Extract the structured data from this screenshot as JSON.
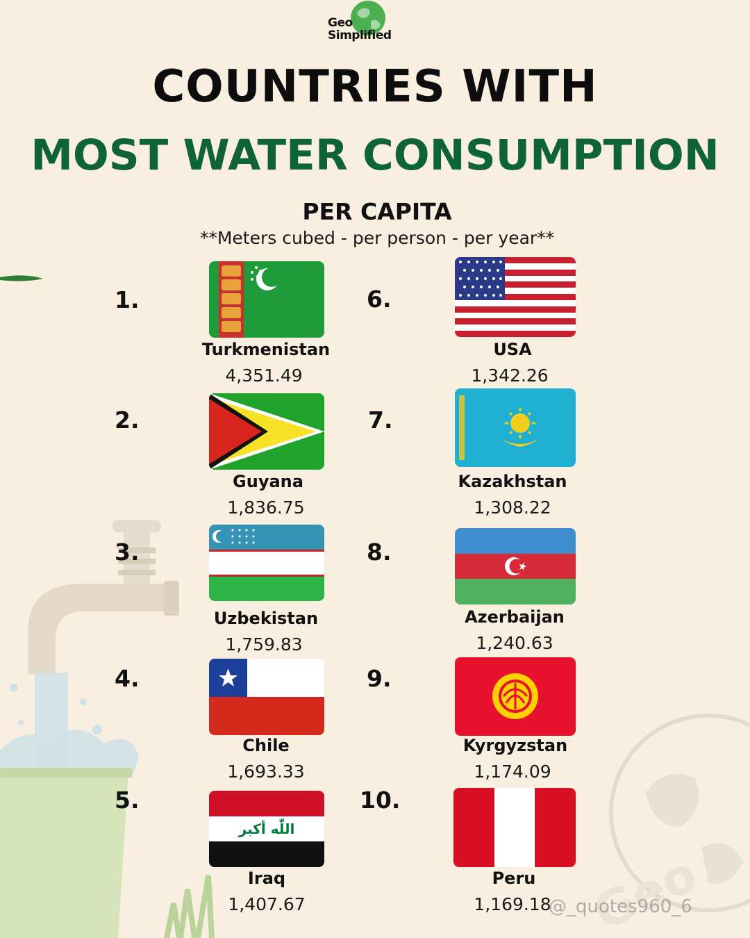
{
  "logo": {
    "line1": "Geo",
    "line2": "Simplified"
  },
  "title": {
    "line1": "COUNTRIES WITH",
    "line2": "MOST WATER CONSUMPTION"
  },
  "subtitle": "PER CAPITA",
  "note": "**Meters cubed - per person - per year**",
  "colors": {
    "background": "#f8efe0",
    "title_green": "#0e6432",
    "text": "#111111"
  },
  "countries": [
    {
      "rank": "1.",
      "name": "Turkmenistan",
      "value": "4,351.49",
      "flag": "turkmenistan-flag"
    },
    {
      "rank": "2.",
      "name": "Guyana",
      "value": "1,836.75",
      "flag": "guyana-flag"
    },
    {
      "rank": "3.",
      "name": "Uzbekistan",
      "value": "1,759.83",
      "flag": "uzbekistan-flag"
    },
    {
      "rank": "4.",
      "name": "Chile",
      "value": "1,693.33",
      "flag": "chile-flag"
    },
    {
      "rank": "5.",
      "name": "Iraq",
      "value": "1,407.67",
      "flag": "iraq-flag"
    },
    {
      "rank": "6.",
      "name": "USA",
      "value": "1,342.26",
      "flag": "usa-flag"
    },
    {
      "rank": "7.",
      "name": "Kazakhstan",
      "value": "1,308.22",
      "flag": "kazakhstan-flag"
    },
    {
      "rank": "8.",
      "name": "Azerbaijan",
      "value": "1,240.63",
      "flag": "azerbaijan-flag"
    },
    {
      "rank": "9.",
      "name": "Kyrgyzstan",
      "value": "1,174.09",
      "flag": "kyrgyzstan-flag"
    },
    {
      "rank": "10.",
      "name": "Peru",
      "value": "1,169.18",
      "flag": "peru-flag"
    }
  ],
  "watermark": "@_quotes960_6"
}
